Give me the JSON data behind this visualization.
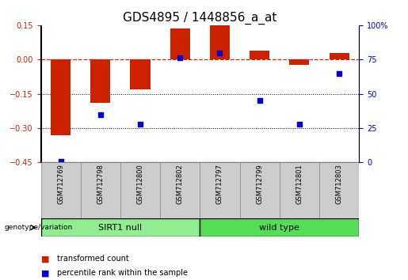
{
  "title": "GDS4895 / 1448856_a_at",
  "samples": [
    "GSM712769",
    "GSM712798",
    "GSM712800",
    "GSM712802",
    "GSM712797",
    "GSM712799",
    "GSM712801",
    "GSM712803"
  ],
  "transformed_count": [
    -0.33,
    -0.19,
    -0.13,
    0.135,
    0.15,
    0.04,
    -0.025,
    0.03
  ],
  "percentile_rank": [
    0.5,
    35,
    28,
    76,
    80,
    45,
    28,
    65
  ],
  "groups": [
    {
      "label": "SIRT1 null",
      "samples": [
        0,
        1,
        2,
        3
      ],
      "color": "#90EE90"
    },
    {
      "label": "wild type",
      "samples": [
        4,
        5,
        6,
        7
      ],
      "color": "#55DD55"
    }
  ],
  "bar_color": "#CC2200",
  "scatter_color": "#0000CC",
  "left_ylim": [
    -0.45,
    0.15
  ],
  "left_yticks": [
    -0.45,
    -0.3,
    -0.15,
    0.0,
    0.15
  ],
  "right_ylim": [
    0,
    100
  ],
  "right_yticks": [
    0,
    25,
    50,
    75,
    100
  ],
  "right_yticklabels": [
    "0",
    "25",
    "50",
    "75",
    "100%"
  ],
  "hline_y": 0.0,
  "dotted_lines": [
    -0.15,
    -0.3
  ],
  "bg_color": "#FFFFFF",
  "title_fontsize": 11,
  "axis_label_fontsize": 7,
  "group_label_fontsize": 8,
  "legend_fontsize": 7,
  "sample_fontsize": 6,
  "bar_width": 0.5
}
